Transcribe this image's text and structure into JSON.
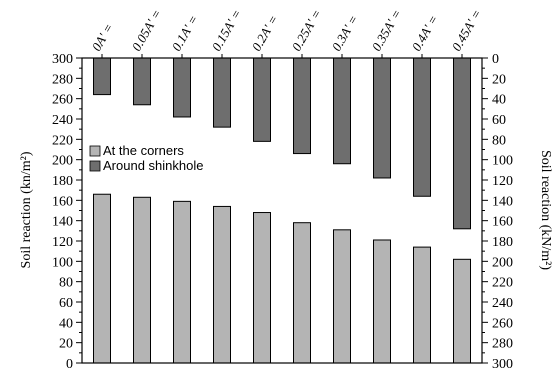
{
  "chart_data": {
    "type": "bar",
    "categories": [
      "0A' =",
      "0.05A' =",
      "0.1A' =",
      "0.15A' =",
      "0.2A' =",
      "0.25A' =",
      "0.3A' =",
      "0.35A' =",
      "0.4A' =",
      "0.45A' ="
    ],
    "series": [
      {
        "name": "At the corners",
        "axis": "left",
        "values": [
          166,
          163,
          159,
          154,
          148,
          138,
          131,
          121,
          114,
          102
        ],
        "color": "#b4b4b4"
      },
      {
        "name": "Around shinkhole",
        "axis": "right",
        "values": [
          36,
          46,
          58,
          68,
          82,
          94,
          104,
          118,
          136,
          168
        ],
        "color": "#6e6e6e"
      }
    ],
    "ylabel_left": "Soil reaction (kn/m²)",
    "ylabel_right": "Soil reaction (kN/m²)",
    "ylim_left": [
      0,
      300
    ],
    "ylim_right": [
      0,
      300
    ],
    "right_axis_inverted": true,
    "y_ticks_left": [
      "0",
      "20",
      "40",
      "60",
      "80",
      "100",
      "120",
      "140",
      "160",
      "180",
      "200",
      "220",
      "240",
      "260",
      "280",
      "300"
    ],
    "y_ticks_right": [
      "0",
      "20",
      "40",
      "60",
      "80",
      "100",
      "120",
      "140",
      "160",
      "180",
      "200",
      "220",
      "240",
      "260",
      "280",
      "300"
    ],
    "legend_position": "left-middle",
    "grid": false
  }
}
